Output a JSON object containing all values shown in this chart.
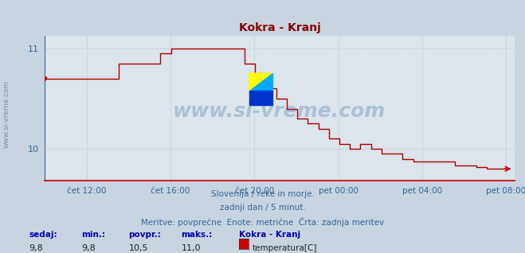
{
  "title": "Kokra - Kranj",
  "title_color": "#8b0000",
  "bg_color": "#c8d4e0",
  "plot_bg_color": "#dce4ec",
  "line_color": "#aa0000",
  "grid_color": "#b0b8c8",
  "tick_color": "#336699",
  "text_color": "#336699",
  "watermark": "www.si-vreme.com",
  "subtitle1": "Slovenija / reke in morje.",
  "subtitle2": "zadnji dan / 5 minut.",
  "subtitle3": "Meritve: povprečne  Enote: metrične  Črta: zadnja meritev",
  "legend_label": "temperatura[C]",
  "legend_color": "#cc0000",
  "yticks": [
    10,
    11
  ],
  "xtick_labels": [
    "čet 12:00",
    "čet 16:00",
    "čet 20:00",
    "pet 00:00",
    "pet 04:00",
    "pet 08:00"
  ],
  "left_label": "www.si-vreme.com"
}
